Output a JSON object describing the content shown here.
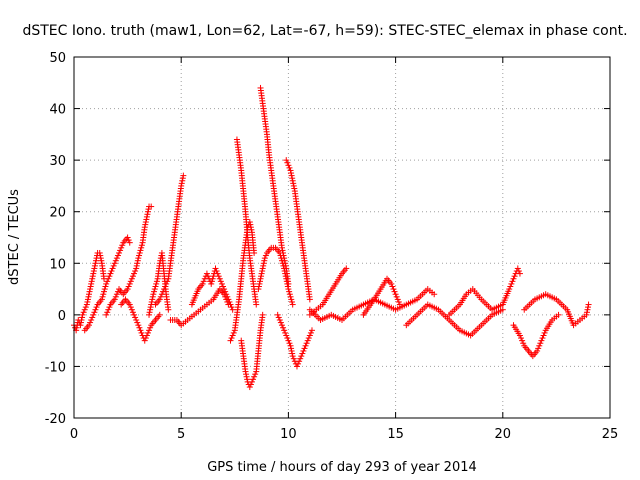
{
  "chart_data": {
    "type": "scatter",
    "title": "dSTEC Iono. truth (maw1, Lon=62, Lat=-67, h=59): STEC-STEC_elemax in phase cont.",
    "xlabel": "GPS time / hours of day 293 of year 2014",
    "ylabel": "dSTEC  / TECUs",
    "xlim": [
      0,
      25
    ],
    "ylim": [
      -20,
      50
    ],
    "xticks": [
      0,
      5,
      10,
      15,
      20,
      25
    ],
    "yticks": [
      -20,
      -10,
      0,
      10,
      20,
      30,
      40,
      50
    ],
    "grid": true,
    "marker": "plus",
    "colors": {
      "series": "#ff0000",
      "grid": "#a0a0a0",
      "axis": "#000000"
    },
    "series": [
      {
        "values": [
          [
            0.0,
            -2
          ],
          [
            0.1,
            -3
          ],
          [
            0.2,
            -1
          ],
          [
            0.3,
            -2
          ],
          [
            0.4,
            0
          ],
          [
            0.5,
            1
          ],
          [
            0.6,
            2
          ],
          [
            0.7,
            4
          ],
          [
            0.8,
            6
          ],
          [
            0.9,
            8
          ],
          [
            1.0,
            10
          ],
          [
            1.1,
            12
          ],
          [
            1.2,
            12
          ],
          [
            1.3,
            10
          ],
          [
            1.4,
            7
          ]
        ]
      },
      {
        "values": [
          [
            0.5,
            -3
          ],
          [
            0.7,
            -2
          ],
          [
            0.9,
            0
          ],
          [
            1.1,
            2
          ],
          [
            1.3,
            3
          ],
          [
            1.5,
            6
          ],
          [
            1.7,
            8
          ],
          [
            1.9,
            10
          ],
          [
            2.1,
            12
          ],
          [
            2.3,
            14
          ],
          [
            2.5,
            15
          ],
          [
            2.6,
            14
          ]
        ]
      },
      {
        "values": [
          [
            1.5,
            0
          ],
          [
            1.7,
            2
          ],
          [
            1.9,
            3
          ],
          [
            2.1,
            5
          ],
          [
            2.3,
            4
          ],
          [
            2.5,
            5
          ],
          [
            2.7,
            7
          ],
          [
            2.9,
            9
          ],
          [
            3.0,
            11
          ],
          [
            3.2,
            14
          ],
          [
            3.3,
            17
          ],
          [
            3.4,
            19
          ],
          [
            3.5,
            21
          ],
          [
            3.6,
            21
          ]
        ]
      },
      {
        "values": [
          [
            2.2,
            2
          ],
          [
            2.4,
            3
          ],
          [
            2.6,
            2
          ],
          [
            2.8,
            0
          ],
          [
            3.0,
            -2
          ],
          [
            3.2,
            -4
          ],
          [
            3.3,
            -5
          ],
          [
            3.4,
            -4
          ],
          [
            3.6,
            -2
          ],
          [
            3.8,
            -1
          ],
          [
            4.0,
            0
          ]
        ]
      },
      {
        "values": [
          [
            3.8,
            2
          ],
          [
            4.0,
            3
          ],
          [
            4.2,
            5
          ],
          [
            4.4,
            7
          ],
          [
            4.5,
            10
          ],
          [
            4.6,
            13
          ],
          [
            4.7,
            16
          ],
          [
            4.8,
            19
          ],
          [
            4.9,
            22
          ],
          [
            5.0,
            25
          ],
          [
            5.1,
            27
          ]
        ]
      },
      {
        "values": [
          [
            3.5,
            0
          ],
          [
            3.7,
            4
          ],
          [
            3.9,
            7
          ],
          [
            4.0,
            10
          ],
          [
            4.1,
            12
          ],
          [
            4.2,
            8
          ],
          [
            4.3,
            4
          ],
          [
            4.4,
            1
          ]
        ]
      },
      {
        "values": [
          [
            4.5,
            -1
          ],
          [
            4.8,
            -1
          ],
          [
            5.0,
            -2
          ],
          [
            5.3,
            -1
          ],
          [
            5.6,
            0
          ],
          [
            5.9,
            1
          ],
          [
            6.2,
            2
          ],
          [
            6.5,
            3
          ],
          [
            6.8,
            5
          ],
          [
            7.0,
            4
          ],
          [
            7.2,
            2
          ]
        ]
      },
      {
        "values": [
          [
            5.5,
            2
          ],
          [
            5.8,
            5
          ],
          [
            6.0,
            6
          ],
          [
            6.2,
            8
          ],
          [
            6.4,
            6
          ],
          [
            6.6,
            9
          ],
          [
            6.8,
            7
          ],
          [
            7.0,
            5
          ],
          [
            7.2,
            3
          ],
          [
            7.4,
            1
          ]
        ]
      },
      {
        "values": [
          [
            7.3,
            -5
          ],
          [
            7.5,
            -3
          ],
          [
            7.6,
            0
          ],
          [
            7.7,
            3
          ],
          [
            7.8,
            7
          ],
          [
            7.9,
            11
          ],
          [
            8.0,
            14
          ],
          [
            8.1,
            17
          ],
          [
            8.2,
            18
          ],
          [
            8.3,
            16
          ],
          [
            8.4,
            12
          ]
        ]
      },
      {
        "values": [
          [
            7.6,
            34
          ],
          [
            7.7,
            31
          ],
          [
            7.8,
            28
          ],
          [
            7.9,
            24
          ],
          [
            8.0,
            20
          ],
          [
            8.1,
            15
          ],
          [
            8.2,
            11
          ],
          [
            8.3,
            8
          ],
          [
            8.4,
            5
          ],
          [
            8.5,
            2
          ]
        ]
      },
      {
        "values": [
          [
            7.8,
            -5
          ],
          [
            7.9,
            -8
          ],
          [
            8.0,
            -11
          ],
          [
            8.1,
            -13
          ],
          [
            8.2,
            -14
          ],
          [
            8.3,
            -13
          ],
          [
            8.4,
            -12
          ],
          [
            8.5,
            -11
          ],
          [
            8.6,
            -7
          ],
          [
            8.7,
            -3
          ],
          [
            8.8,
            0
          ]
        ]
      },
      {
        "values": [
          [
            8.7,
            44
          ],
          [
            8.8,
            41
          ],
          [
            8.9,
            38
          ],
          [
            9.0,
            35
          ],
          [
            9.1,
            31
          ],
          [
            9.2,
            28
          ],
          [
            9.3,
            25
          ],
          [
            9.4,
            22
          ],
          [
            9.5,
            19
          ],
          [
            9.6,
            16
          ],
          [
            9.7,
            13
          ],
          [
            9.8,
            11
          ],
          [
            9.9,
            9
          ],
          [
            10.0,
            6
          ]
        ]
      },
      {
        "values": [
          [
            8.6,
            5
          ],
          [
            8.7,
            7
          ],
          [
            8.8,
            9
          ],
          [
            8.9,
            11
          ],
          [
            9.0,
            12
          ],
          [
            9.2,
            13
          ],
          [
            9.4,
            13
          ],
          [
            9.6,
            12
          ],
          [
            9.8,
            9
          ],
          [
            10.0,
            5
          ],
          [
            10.2,
            2
          ]
        ]
      },
      {
        "values": [
          [
            9.9,
            30
          ],
          [
            10.0,
            29
          ],
          [
            10.1,
            28
          ],
          [
            10.2,
            26
          ],
          [
            10.3,
            24
          ],
          [
            10.4,
            21
          ],
          [
            10.5,
            18
          ],
          [
            10.6,
            15
          ],
          [
            10.7,
            12
          ],
          [
            10.8,
            9
          ],
          [
            10.9,
            6
          ],
          [
            11.0,
            3
          ]
        ]
      },
      {
        "values": [
          [
            9.5,
            0
          ],
          [
            9.7,
            -2
          ],
          [
            9.9,
            -4
          ],
          [
            10.1,
            -6
          ],
          [
            10.2,
            -8
          ],
          [
            10.3,
            -9
          ],
          [
            10.4,
            -10
          ],
          [
            10.5,
            -9
          ],
          [
            10.7,
            -7
          ],
          [
            10.9,
            -5
          ],
          [
            11.1,
            -3
          ]
        ]
      },
      {
        "values": [
          [
            11.0,
            0
          ],
          [
            11.3,
            1
          ],
          [
            11.6,
            2
          ],
          [
            11.9,
            4
          ],
          [
            12.2,
            6
          ],
          [
            12.5,
            8
          ],
          [
            12.7,
            9
          ]
        ]
      },
      {
        "values": [
          [
            11.0,
            1
          ],
          [
            11.5,
            -1
          ],
          [
            12.0,
            0
          ],
          [
            12.5,
            -1
          ],
          [
            13.0,
            1
          ],
          [
            13.5,
            2
          ],
          [
            14.0,
            3
          ],
          [
            14.5,
            2
          ],
          [
            15.0,
            1
          ],
          [
            15.5,
            2
          ],
          [
            16.0,
            3
          ],
          [
            16.5,
            5
          ],
          [
            16.8,
            4
          ]
        ]
      },
      {
        "values": [
          [
            13.5,
            0
          ],
          [
            14.0,
            3
          ],
          [
            14.3,
            5
          ],
          [
            14.6,
            7
          ],
          [
            14.8,
            6
          ],
          [
            15.0,
            4
          ],
          [
            15.2,
            2
          ]
        ]
      },
      {
        "values": [
          [
            15.5,
            -2
          ],
          [
            16.0,
            0
          ],
          [
            16.5,
            2
          ],
          [
            17.0,
            1
          ],
          [
            17.5,
            -1
          ],
          [
            18.0,
            -3
          ],
          [
            18.5,
            -4
          ],
          [
            19.0,
            -2
          ],
          [
            19.5,
            0
          ],
          [
            20.0,
            1
          ]
        ]
      },
      {
        "values": [
          [
            17.5,
            0
          ],
          [
            18.0,
            2
          ],
          [
            18.3,
            4
          ],
          [
            18.6,
            5
          ],
          [
            19.0,
            3
          ],
          [
            19.5,
            1
          ],
          [
            20.0,
            2
          ],
          [
            20.3,
            5
          ],
          [
            20.5,
            7
          ],
          [
            20.7,
            9
          ],
          [
            20.8,
            8
          ]
        ]
      },
      {
        "values": [
          [
            20.5,
            -2
          ],
          [
            20.8,
            -4
          ],
          [
            21.0,
            -6
          ],
          [
            21.2,
            -7
          ],
          [
            21.4,
            -8
          ],
          [
            21.6,
            -7
          ],
          [
            21.8,
            -5
          ],
          [
            22.0,
            -3
          ],
          [
            22.3,
            -1
          ],
          [
            22.6,
            0
          ]
        ]
      },
      {
        "values": [
          [
            21.0,
            1
          ],
          [
            21.5,
            3
          ],
          [
            22.0,
            4
          ],
          [
            22.5,
            3
          ],
          [
            23.0,
            1
          ],
          [
            23.3,
            -2
          ],
          [
            23.6,
            -1
          ],
          [
            23.9,
            0
          ],
          [
            24.0,
            2
          ]
        ]
      }
    ]
  }
}
